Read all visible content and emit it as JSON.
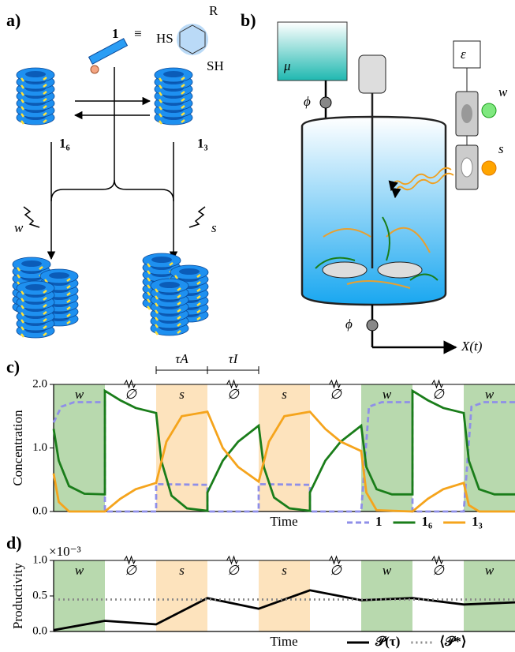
{
  "panel_a": {
    "label": "a)",
    "molecule": "1",
    "equiv": "≡",
    "hs": "HS",
    "r": "R",
    "sh": "SH",
    "stack_left": "1₆",
    "stack_right": "1₃",
    "signal_left": "w",
    "signal_right": "s"
  },
  "panel_b": {
    "label": "b)",
    "reservoir": "μ",
    "flow_in": "ϕ",
    "flow_out": "ϕ",
    "control": "ε",
    "lamp_w": "w",
    "lamp_s": "s",
    "output": "X(t)"
  },
  "chart_data": [
    {
      "type": "line",
      "panel_label": "c)",
      "ylabel": "Concentration",
      "xlabel": "Time",
      "xlim": [
        0,
        9
      ],
      "ylim": [
        0,
        2
      ],
      "yticks": [
        {
          "value": 0,
          "label": "0.0"
        },
        {
          "value": 1,
          "label": "1.0"
        },
        {
          "value": 2,
          "label": "2.0"
        }
      ],
      "phases": [
        "w",
        "∅",
        "s",
        "∅",
        "s",
        "∅",
        "w",
        "∅",
        "w"
      ],
      "phase_colors": {
        "w": "#b8d9ae",
        "s": "#fde3bd"
      },
      "annotations": [
        {
          "text": "τA",
          "x": [
            2,
            3
          ]
        },
        {
          "text": "τI",
          "x": [
            3,
            4
          ]
        }
      ],
      "series": [
        {
          "name": "1",
          "color": "#8f8fe8",
          "dash": "dashed",
          "x": [
            0,
            0.15,
            0.4,
            1,
            1,
            2,
            2,
            3,
            3,
            4,
            4,
            5,
            5,
            6,
            6.15,
            6.4,
            7,
            7,
            8,
            8.15,
            8.4,
            9
          ],
          "values": [
            1.4,
            1.65,
            1.72,
            1.72,
            0,
            0,
            0.43,
            0.42,
            0,
            0,
            0.43,
            0.42,
            0,
            0,
            1.65,
            1.72,
            1.72,
            0,
            0,
            1.65,
            1.72,
            1.72
          ]
        },
        {
          "name": "1₆",
          "color": "#1a7d1a",
          "dash": "solid",
          "x": [
            0,
            0.1,
            0.3,
            0.6,
            1,
            1,
            1.3,
            1.6,
            2,
            2.1,
            2.3,
            2.6,
            3,
            3,
            3.3,
            3.6,
            4,
            4.1,
            4.3,
            4.6,
            5,
            5,
            5.3,
            5.6,
            6,
            6.1,
            6.3,
            6.6,
            7,
            7,
            7.3,
            7.6,
            8,
            8.1,
            8.3,
            8.6,
            9
          ],
          "values": [
            1.3,
            0.8,
            0.4,
            0.28,
            0.27,
            1.9,
            1.75,
            1.63,
            1.55,
            0.8,
            0.25,
            0.05,
            0.01,
            0.3,
            0.8,
            1.1,
            1.35,
            0.7,
            0.22,
            0.05,
            0.01,
            0.3,
            0.8,
            1.1,
            1.35,
            0.7,
            0.35,
            0.27,
            0.27,
            1.9,
            1.75,
            1.63,
            1.55,
            0.8,
            0.35,
            0.27,
            0.27
          ]
        },
        {
          "name": "1₃",
          "color": "#f5a41c",
          "dash": "solid",
          "x": [
            0,
            0.1,
            0.3,
            1,
            1.3,
            1.6,
            2,
            2.2,
            2.5,
            3,
            3.3,
            3.6,
            4,
            4.2,
            4.5,
            5,
            5.3,
            5.6,
            6,
            6.1,
            6.3,
            7,
            7.3,
            7.6,
            8,
            8.1,
            8.3,
            9
          ],
          "values": [
            0.6,
            0.15,
            0,
            0,
            0.2,
            0.35,
            0.45,
            1.1,
            1.5,
            1.57,
            1.0,
            0.7,
            0.47,
            1.1,
            1.5,
            1.57,
            1.3,
            1.1,
            0.95,
            0.3,
            0.02,
            0,
            0.2,
            0.35,
            0.45,
            0.1,
            0,
            0
          ]
        }
      ]
    },
    {
      "type": "line",
      "panel_label": "d)",
      "ylabel": "Productivity",
      "xlabel": "Time",
      "multiplier": "×10⁻³",
      "xlim": [
        0,
        9
      ],
      "ylim": [
        0,
        1
      ],
      "yticks": [
        {
          "value": 0,
          "label": "0.0"
        },
        {
          "value": 0.5,
          "label": "0.5"
        },
        {
          "value": 1,
          "label": "1.0"
        }
      ],
      "phases": [
        "w",
        "∅",
        "s",
        "∅",
        "s",
        "∅",
        "w",
        "∅",
        "w"
      ],
      "phase_colors": {
        "w": "#b8d9ae",
        "s": "#fde3bd"
      },
      "series": [
        {
          "name": "𝒫(τ)",
          "color": "#000000",
          "dash": "solid",
          "x": [
            0,
            1,
            2,
            3,
            4,
            5,
            6,
            7,
            8,
            9
          ],
          "values": [
            0.02,
            0.15,
            0.1,
            0.47,
            0.32,
            0.58,
            0.44,
            0.47,
            0.38,
            0.41
          ]
        },
        {
          "name": "⟨𝒫*⟩",
          "color": "#888888",
          "dash": "dotted",
          "x": [
            0,
            9
          ],
          "values": [
            0.45,
            0.45
          ]
        }
      ]
    }
  ]
}
